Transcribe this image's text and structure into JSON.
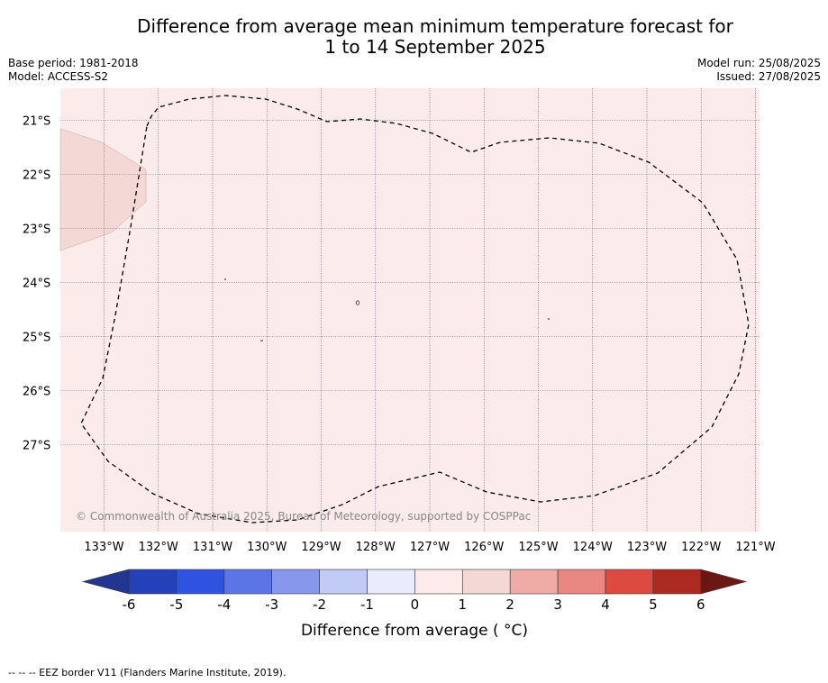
{
  "title_line1": "Difference from average mean minimum temperature forecast for",
  "title_line2": "1 to 14 September 2025",
  "base_period": "Base period: 1981-2018",
  "model": "Model: ACCESS-S2",
  "model_run": "Model run: 25/08/2025",
  "issued": "Issued: 27/08/2025",
  "copyright": "© Commonwealth of Australia 2025, Bureau of Meteorology, supported by COSPPac",
  "footnote": "-- -- -- EEZ border V11 (Flanders Marine Institute, 2019).",
  "map": {
    "lon_labels": [
      "133°W",
      "132°W",
      "131°W",
      "130°W",
      "129°W",
      "128°W",
      "127°W",
      "126°W",
      "125°W",
      "124°W",
      "123°W",
      "122°W",
      "121°W"
    ],
    "lat_labels": [
      "21°S",
      "22°S",
      "23°S",
      "24°S",
      "25°S",
      "26°S",
      "27°S"
    ],
    "background_color": "#fbebea",
    "anomaly_patch_color": "#f3d8d5",
    "anomaly_patch_value_range": "1 to 2"
  },
  "colorbar": {
    "label": "Difference from average ( °C)",
    "ticks": [
      "-6",
      "-5",
      "-4",
      "-3",
      "-2",
      "-1",
      "0",
      "1",
      "2",
      "3",
      "4",
      "5",
      "6"
    ],
    "colors": [
      "#213591",
      "#2541b9",
      "#3052e0",
      "#5b74e6",
      "#8798ec",
      "#c2cbf5",
      "#e9ecfb",
      "#fcebea",
      "#f3d8d5",
      "#efaca6",
      "#e98883",
      "#dc4a40",
      "#ac2a21",
      "#6b1713"
    ],
    "low_extend_color": "#213591",
    "high_extend_color": "#6b1713"
  }
}
